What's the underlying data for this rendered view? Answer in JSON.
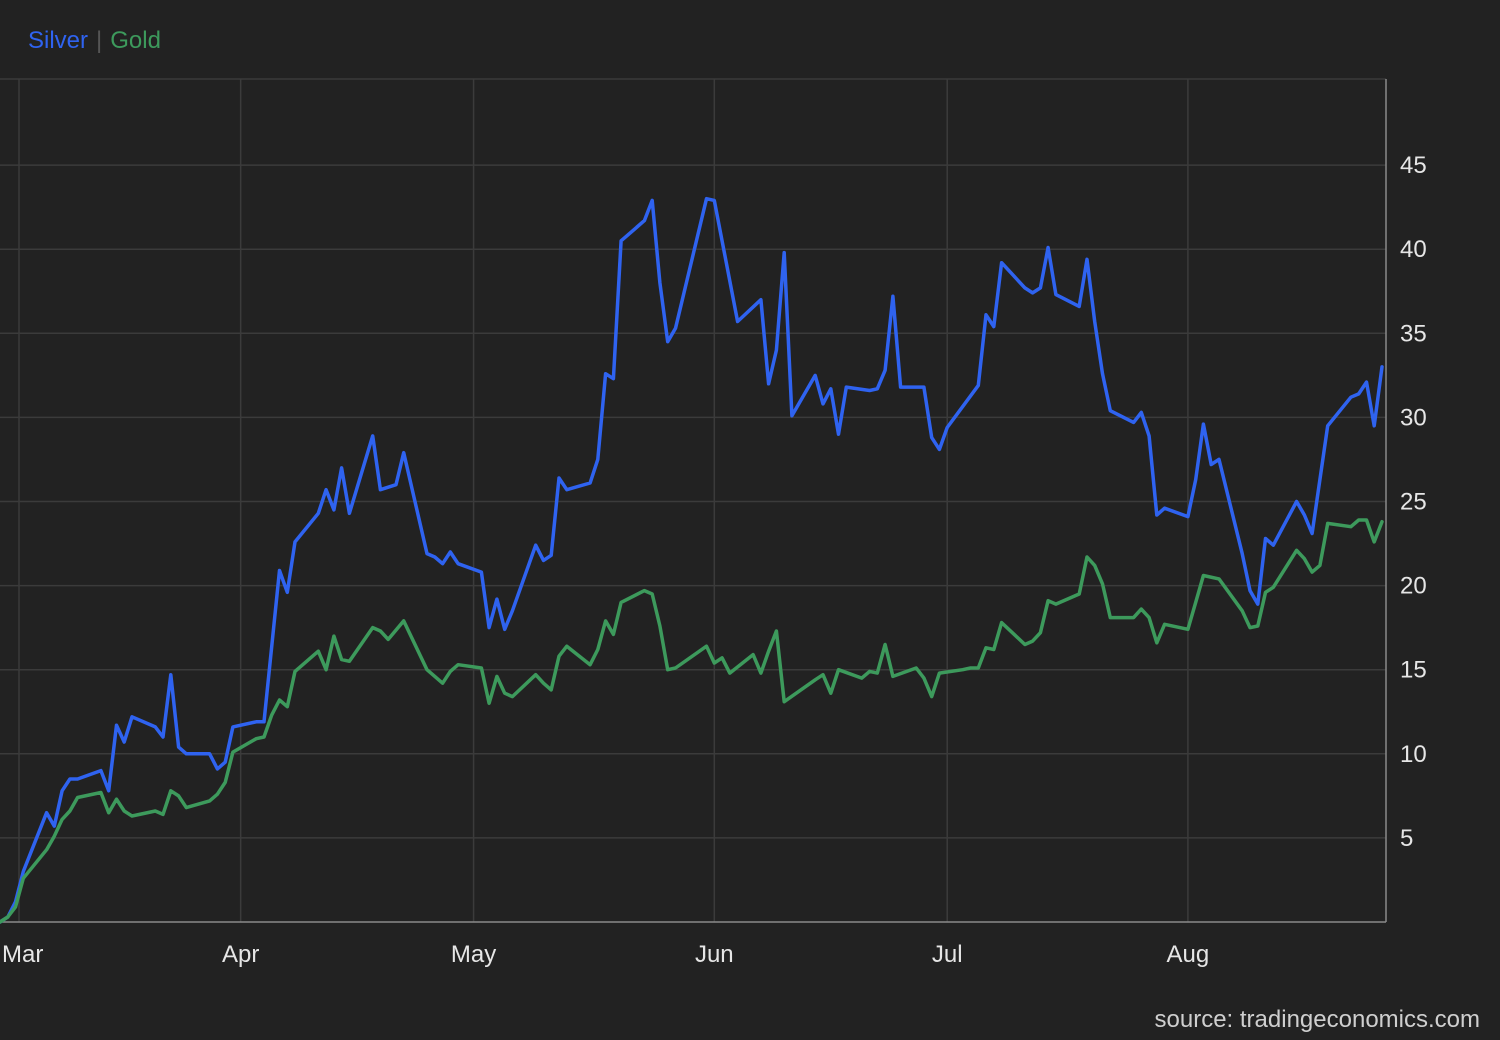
{
  "legend": {
    "separator": "|"
  },
  "source": "source: tradingeconomics.com",
  "colors": {
    "silver": "#2f63f0",
    "gold": "#3d9a5c",
    "grid": "#3b3b3b",
    "background": "#222222"
  },
  "chart_data": {
    "type": "line",
    "title": "",
    "xlabel": "",
    "ylabel": "",
    "grid": true,
    "legend_position": "top-left",
    "x_ticks": [
      {
        "label": "Mar",
        "x": 0
      },
      {
        "label": "Apr",
        "x": 31
      },
      {
        "label": "May",
        "x": 61
      },
      {
        "label": "Jun",
        "x": 92
      },
      {
        "label": "Jul",
        "x": 122
      },
      {
        "label": "Aug",
        "x": 153
      }
    ],
    "xlim": [
      0,
      178
    ],
    "y_ticks": [
      5,
      10,
      15,
      20,
      25,
      30,
      35,
      40,
      45
    ],
    "ylim": [
      0,
      50
    ],
    "series": [
      {
        "name": "Silver",
        "color": "#2f63f0",
        "points": [
          [
            0,
            0
          ],
          [
            1,
            0.3
          ],
          [
            2,
            1.2
          ],
          [
            3,
            3
          ],
          [
            6,
            6.5
          ],
          [
            7,
            5.7
          ],
          [
            8,
            7.8
          ],
          [
            9,
            8.5
          ],
          [
            10,
            8.5
          ],
          [
            13,
            9
          ],
          [
            14,
            7.8
          ],
          [
            15,
            11.7
          ],
          [
            16,
            10.7
          ],
          [
            17,
            12.2
          ],
          [
            20,
            11.6
          ],
          [
            21,
            11
          ],
          [
            22,
            14.7
          ],
          [
            23,
            10.4
          ],
          [
            24,
            10
          ],
          [
            27,
            10
          ],
          [
            28,
            9.1
          ],
          [
            29,
            9.5
          ],
          [
            30,
            11.6
          ],
          [
            33,
            11.9
          ],
          [
            34,
            11.9
          ],
          [
            36,
            20.9
          ],
          [
            37,
            19.6
          ],
          [
            38,
            22.6
          ],
          [
            41,
            24.3
          ],
          [
            42,
            25.7
          ],
          [
            43,
            24.5
          ],
          [
            44,
            27
          ],
          [
            45,
            24.3
          ],
          [
            48,
            28.9
          ],
          [
            49,
            25.7
          ],
          [
            51,
            26
          ],
          [
            52,
            27.9
          ],
          [
            55,
            21.9
          ],
          [
            56,
            21.7
          ],
          [
            57,
            21.3
          ],
          [
            58,
            22
          ],
          [
            59,
            21.3
          ],
          [
            62,
            20.8
          ],
          [
            63,
            17.5
          ],
          [
            64,
            19.2
          ],
          [
            65,
            17.4
          ],
          [
            66,
            18.5
          ],
          [
            69,
            22.4
          ],
          [
            70,
            21.5
          ],
          [
            71,
            21.8
          ],
          [
            72,
            26.4
          ],
          [
            73,
            25.7
          ],
          [
            76,
            26.1
          ],
          [
            77,
            27.5
          ],
          [
            78,
            32.6
          ],
          [
            79,
            32.3
          ],
          [
            80,
            40.5
          ],
          [
            83,
            41.7
          ],
          [
            84,
            42.9
          ],
          [
            85,
            38
          ],
          [
            86,
            34.5
          ],
          [
            87,
            35.3
          ],
          [
            91,
            43
          ],
          [
            92,
            42.9
          ],
          [
            95,
            35.7
          ],
          [
            98,
            37
          ],
          [
            99,
            32
          ],
          [
            100,
            34
          ],
          [
            101,
            39.8
          ],
          [
            102,
            30.1
          ],
          [
            105,
            32.5
          ],
          [
            106,
            30.8
          ],
          [
            107,
            31.7
          ],
          [
            108,
            29
          ],
          [
            109,
            31.8
          ],
          [
            112,
            31.6
          ],
          [
            113,
            31.7
          ],
          [
            114,
            32.8
          ],
          [
            115,
            37.2
          ],
          [
            116,
            31.8
          ],
          [
            119,
            31.8
          ],
          [
            120,
            28.8
          ],
          [
            121,
            28.1
          ],
          [
            122,
            29.4
          ],
          [
            126,
            31.9
          ],
          [
            127,
            36.1
          ],
          [
            128,
            35.4
          ],
          [
            129,
            39.2
          ],
          [
            132,
            37.7
          ],
          [
            133,
            37.4
          ],
          [
            134,
            37.7
          ],
          [
            135,
            40.1
          ],
          [
            136,
            37.3
          ],
          [
            139,
            36.6
          ],
          [
            140,
            39.4
          ],
          [
            141,
            35.7
          ],
          [
            142,
            32.6
          ],
          [
            143,
            30.4
          ],
          [
            146,
            29.7
          ],
          [
            147,
            30.3
          ],
          [
            148,
            28.9
          ],
          [
            149,
            24.2
          ],
          [
            150,
            24.6
          ],
          [
            153,
            24.1
          ],
          [
            154,
            26.3
          ],
          [
            155,
            29.6
          ],
          [
            156,
            27.2
          ],
          [
            157,
            27.5
          ],
          [
            160,
            21.9
          ],
          [
            161,
            19.7
          ],
          [
            162,
            18.9
          ],
          [
            163,
            22.8
          ],
          [
            164,
            22.4
          ],
          [
            167,
            25
          ],
          [
            168,
            24.2
          ],
          [
            169,
            23.1
          ],
          [
            171,
            29.5
          ],
          [
            174,
            31.2
          ],
          [
            175,
            31.4
          ],
          [
            176,
            32.1
          ],
          [
            177,
            29.5
          ],
          [
            178,
            33
          ]
        ]
      },
      {
        "name": "Gold",
        "color": "#3d9a5c",
        "points": [
          [
            0,
            0
          ],
          [
            1,
            0.3
          ],
          [
            2,
            0.9
          ],
          [
            3,
            2.6
          ],
          [
            6,
            4.3
          ],
          [
            7,
            5.1
          ],
          [
            8,
            6.1
          ],
          [
            9,
            6.6
          ],
          [
            10,
            7.4
          ],
          [
            13,
            7.7
          ],
          [
            14,
            6.5
          ],
          [
            15,
            7.3
          ],
          [
            16,
            6.6
          ],
          [
            17,
            6.3
          ],
          [
            20,
            6.6
          ],
          [
            21,
            6.4
          ],
          [
            22,
            7.8
          ],
          [
            23,
            7.5
          ],
          [
            24,
            6.8
          ],
          [
            27,
            7.2
          ],
          [
            28,
            7.6
          ],
          [
            29,
            8.3
          ],
          [
            30,
            10.1
          ],
          [
            33,
            10.9
          ],
          [
            34,
            11
          ],
          [
            35,
            12.3
          ],
          [
            36,
            13.2
          ],
          [
            37,
            12.8
          ],
          [
            38,
            14.9
          ],
          [
            41,
            16.1
          ],
          [
            42,
            15
          ],
          [
            43,
            17
          ],
          [
            44,
            15.6
          ],
          [
            45,
            15.5
          ],
          [
            48,
            17.5
          ],
          [
            49,
            17.3
          ],
          [
            50,
            16.8
          ],
          [
            52,
            17.9
          ],
          [
            55,
            15
          ],
          [
            56,
            14.6
          ],
          [
            57,
            14.2
          ],
          [
            58,
            14.9
          ],
          [
            59,
            15.3
          ],
          [
            62,
            15.1
          ],
          [
            63,
            13
          ],
          [
            64,
            14.6
          ],
          [
            65,
            13.6
          ],
          [
            66,
            13.4
          ],
          [
            69,
            14.7
          ],
          [
            70,
            14.2
          ],
          [
            71,
            13.8
          ],
          [
            72,
            15.8
          ],
          [
            73,
            16.4
          ],
          [
            76,
            15.3
          ],
          [
            77,
            16.2
          ],
          [
            78,
            17.9
          ],
          [
            79,
            17.1
          ],
          [
            80,
            19
          ],
          [
            83,
            19.7
          ],
          [
            84,
            19.5
          ],
          [
            85,
            17.6
          ],
          [
            86,
            15
          ],
          [
            87,
            15.1
          ],
          [
            91,
            16.4
          ],
          [
            92,
            15.4
          ],
          [
            93,
            15.7
          ],
          [
            94,
            14.8
          ],
          [
            97,
            15.9
          ],
          [
            98,
            14.8
          ],
          [
            99,
            16.1
          ],
          [
            100,
            17.3
          ],
          [
            101,
            13.1
          ],
          [
            105,
            14.4
          ],
          [
            106,
            14.7
          ],
          [
            107,
            13.6
          ],
          [
            108,
            15
          ],
          [
            111,
            14.5
          ],
          [
            112,
            14.9
          ],
          [
            113,
            14.8
          ],
          [
            114,
            16.5
          ],
          [
            115,
            14.6
          ],
          [
            118,
            15.1
          ],
          [
            119,
            14.5
          ],
          [
            120,
            13.4
          ],
          [
            121,
            14.8
          ],
          [
            124,
            15
          ],
          [
            125,
            15.1
          ],
          [
            126,
            15.1
          ],
          [
            127,
            16.3
          ],
          [
            128,
            16.2
          ],
          [
            129,
            17.8
          ],
          [
            132,
            16.5
          ],
          [
            133,
            16.7
          ],
          [
            134,
            17.2
          ],
          [
            135,
            19.1
          ],
          [
            136,
            18.9
          ],
          [
            139,
            19.5
          ],
          [
            140,
            21.7
          ],
          [
            141,
            21.2
          ],
          [
            142,
            20.1
          ],
          [
            143,
            18.1
          ],
          [
            146,
            18.1
          ],
          [
            147,
            18.6
          ],
          [
            148,
            18.1
          ],
          [
            149,
            16.6
          ],
          [
            150,
            17.7
          ],
          [
            153,
            17.4
          ],
          [
            154,
            19
          ],
          [
            155,
            20.6
          ],
          [
            157,
            20.4
          ],
          [
            160,
            18.5
          ],
          [
            161,
            17.5
          ],
          [
            162,
            17.6
          ],
          [
            163,
            19.6
          ],
          [
            164,
            19.9
          ],
          [
            167,
            22.1
          ],
          [
            168,
            21.6
          ],
          [
            169,
            20.8
          ],
          [
            170,
            21.2
          ],
          [
            171,
            23.7
          ],
          [
            174,
            23.5
          ],
          [
            175,
            23.9
          ],
          [
            176,
            23.9
          ],
          [
            177,
            22.6
          ],
          [
            178,
            23.8
          ]
        ]
      }
    ]
  }
}
